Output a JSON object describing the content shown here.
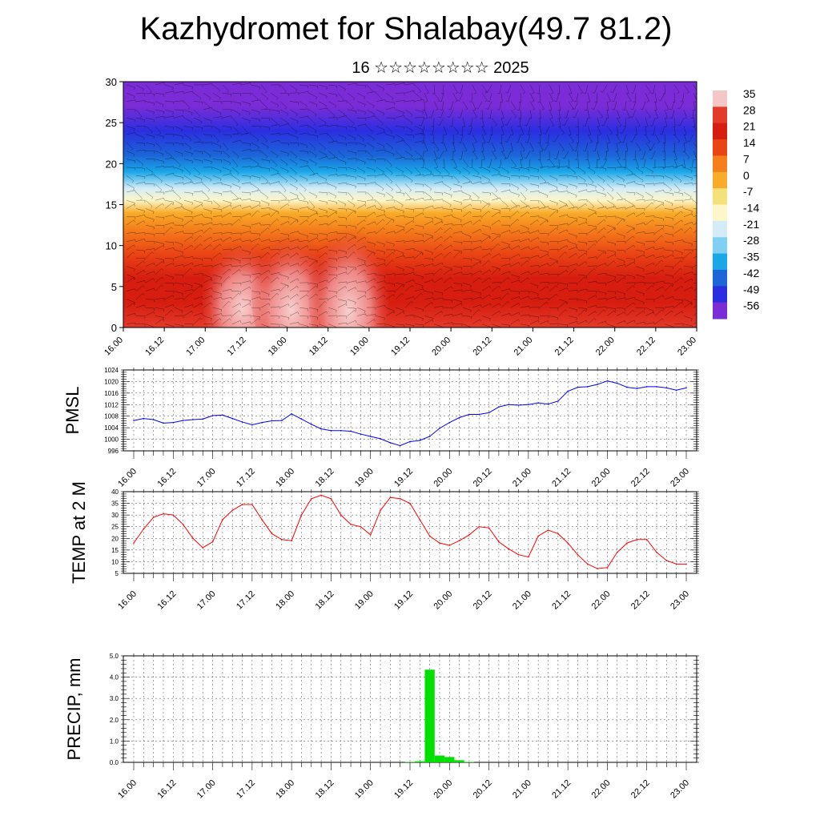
{
  "title": "Kazhydromet for Shalabay(49.7 81.2)",
  "subtitle": "16 ☆☆☆☆☆☆☆☆ 2025",
  "x_ticks": [
    "16.00",
    "16.12",
    "17.00",
    "17.12",
    "18.00",
    "18.12",
    "19.00",
    "19.12",
    "20.00",
    "20.12",
    "21.00",
    "21.12",
    "22.00",
    "22.12",
    "23.00"
  ],
  "colors": {
    "pmsl_line": "#0000ff",
    "temp_line": "#ff0000",
    "precip_bar": "#00e000"
  },
  "chart_data": [
    {
      "type": "heatmap",
      "name": "cross_section",
      "ylim": [
        0,
        30
      ],
      "yticks": [
        0,
        5,
        10,
        15,
        20,
        25,
        30
      ],
      "colorbar": {
        "labels": [
          "35",
          "28",
          "21",
          "14",
          "7",
          "0",
          "-7",
          "-14",
          "-21",
          "-28",
          "-35",
          "-42",
          "-49",
          "-56"
        ],
        "colors": [
          "#f4c6c6",
          "#e33a2a",
          "#d61d10",
          "#ea4415",
          "#f47f1c",
          "#f9ac2a",
          "#f6e07a",
          "#fdf6c8",
          "#d4ecf7",
          "#7fd0f2",
          "#1aa7e8",
          "#1c66d8",
          "#2b2ee0",
          "#7b2cd6"
        ]
      },
      "profile": [
        {
          "h": 0,
          "v": 28
        },
        {
          "h": 3,
          "v": 24
        },
        {
          "h": 6,
          "v": 20
        },
        {
          "h": 9,
          "v": 14
        },
        {
          "h": 12,
          "v": 6
        },
        {
          "h": 14,
          "v": -2
        },
        {
          "h": 15.5,
          "v": -12
        },
        {
          "h": 17,
          "v": -22
        },
        {
          "h": 19,
          "v": -32
        },
        {
          "h": 21,
          "v": -40
        },
        {
          "h": 24,
          "v": -48
        },
        {
          "h": 27,
          "v": -54
        },
        {
          "h": 30,
          "v": -57
        }
      ]
    },
    {
      "type": "line",
      "name": "pmsl",
      "ylabel": "PMSL",
      "ylim": [
        996,
        1024
      ],
      "yticks": [
        996,
        1000,
        1004,
        1008,
        1012,
        1016,
        1020,
        1024
      ],
      "x": [
        0,
        1,
        2,
        3,
        4,
        5,
        6,
        7,
        8,
        9,
        10,
        11,
        12,
        13,
        14,
        15,
        16,
        17,
        18,
        19,
        20,
        21,
        22,
        23,
        24,
        25,
        26,
        27,
        28,
        29,
        30,
        31,
        32,
        33,
        34,
        35,
        36,
        37,
        38,
        39,
        40,
        41,
        42,
        43,
        44,
        45,
        46,
        47,
        48,
        49,
        50,
        51,
        52,
        53,
        54,
        55,
        56
      ],
      "values": [
        1006.5,
        1007.2,
        1006.8,
        1005.6,
        1005.8,
        1006.5,
        1006.8,
        1007.0,
        1008.2,
        1008.4,
        1007.2,
        1006.0,
        1005.0,
        1005.8,
        1006.4,
        1006.5,
        1008.8,
        1007.0,
        1005.2,
        1003.6,
        1003.0,
        1003.0,
        1002.8,
        1001.8,
        1001.0,
        1000.2,
        998.8,
        997.8,
        999.2,
        999.6,
        1001.0,
        1003.8,
        1005.8,
        1007.5,
        1008.6,
        1008.6,
        1009.2,
        1011.2,
        1012.0,
        1011.8,
        1012.0,
        1012.6,
        1012.2,
        1013.2,
        1016.6,
        1018.0,
        1018.2,
        1019.0,
        1020.2,
        1019.4,
        1018.0,
        1017.6,
        1018.2,
        1018.2,
        1017.8,
        1017.0,
        1017.8
      ]
    },
    {
      "type": "line",
      "name": "temp",
      "ylabel": "TEMP at 2 M",
      "ylim": [
        5,
        40
      ],
      "yticks": [
        5,
        10,
        15,
        20,
        25,
        30,
        35,
        40
      ],
      "x": [
        0,
        1,
        2,
        3,
        4,
        5,
        6,
        7,
        8,
        9,
        10,
        11,
        12,
        13,
        14,
        15,
        16,
        17,
        18,
        19,
        20,
        21,
        22,
        23,
        24,
        25,
        26,
        27,
        28,
        29,
        30,
        31,
        32,
        33,
        34,
        35,
        36,
        37,
        38,
        39,
        40,
        41,
        42,
        43,
        44,
        45,
        46,
        47,
        48,
        49,
        50,
        51,
        52,
        53,
        54,
        55,
        56
      ],
      "values": [
        18,
        24,
        29,
        30.5,
        30,
        26,
        20,
        16,
        18.5,
        28,
        32,
        34.5,
        34.5,
        28,
        22,
        19.5,
        19,
        30,
        37,
        38.5,
        37,
        30,
        26,
        25,
        21.5,
        32,
        37.5,
        37,
        35,
        28,
        21,
        18,
        17,
        19,
        21.5,
        25,
        24.5,
        18.5,
        15.5,
        13,
        12,
        21,
        23.5,
        22,
        18,
        13,
        9,
        7,
        7.5,
        14,
        18,
        19.5,
        19.5,
        14,
        10.5,
        9,
        9
      ]
    },
    {
      "type": "bar",
      "name": "precip",
      "ylabel": "PRECIP, mm",
      "ylim": [
        0,
        5
      ],
      "yticks": [
        "0.0",
        "1.0",
        "2.0",
        "3.0",
        "4.0",
        "5.0"
      ],
      "x": [
        28,
        29,
        30,
        31,
        32,
        33,
        34
      ],
      "values": [
        0.02,
        0.05,
        4.35,
        0.32,
        0.25,
        0.1,
        0.02
      ]
    }
  ]
}
